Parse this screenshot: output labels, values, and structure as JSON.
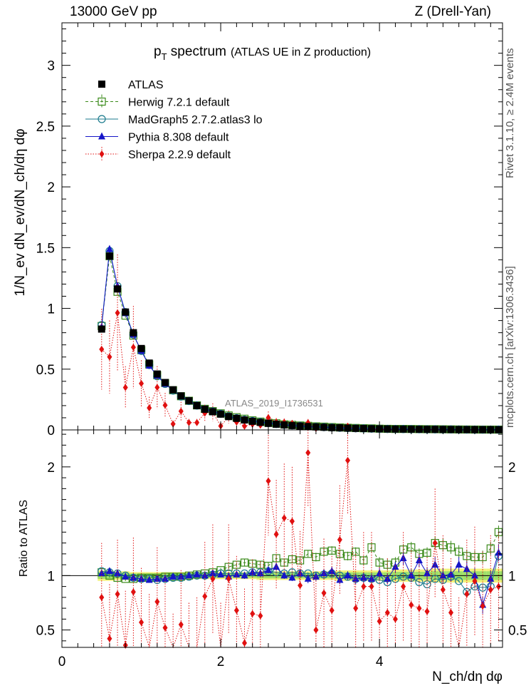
{
  "header": {
    "left": "13000 GeV pp",
    "right": "Z (Drell-Yan)"
  },
  "side_labels": {
    "rivet": "Rivet 3.1.10, ≥ 2.4M events",
    "mcplots": "mcplots.cern.ch [arXiv:1306.3436]"
  },
  "chart_data": {
    "type": "scatter",
    "title_main": "p",
    "title_sub": "T",
    "title_rest": " spectrum",
    "title_paren": "(ATLAS UE in Z production)",
    "analysis_label": "ATLAS_2019_I1736531",
    "ylabel_top": "1/N_ev dN_ev/dN_ch/dη dφ",
    "ylabel_bottom": "Ratio to ATLAS",
    "xlabel": "N_ch/dη dφ",
    "xlim": [
      0,
      5.55
    ],
    "ylim_top": [
      0,
      3.35
    ],
    "ylim_ratio": [
      0.34,
      2.34
    ],
    "y_ticks_top": [
      0,
      0.5,
      1,
      1.5,
      2,
      2.5,
      3
    ],
    "y_tick_labels_top": [
      "0",
      "0.5",
      "1",
      "1.5",
      "2",
      "2.5",
      "3"
    ],
    "y_ticks_ratio": [
      0.5,
      1,
      2
    ],
    "y_tick_labels_ratio": [
      "0.5",
      "1",
      "2"
    ],
    "x_ticks": [
      0,
      2,
      4
    ],
    "x_tick_labels": [
      "0",
      "2",
      "4"
    ],
    "x": [
      0.5,
      0.6,
      0.7,
      0.8,
      0.9,
      1.0,
      1.1,
      1.2,
      1.3,
      1.4,
      1.5,
      1.6,
      1.7,
      1.8,
      1.9,
      2.0,
      2.1,
      2.2,
      2.3,
      2.4,
      2.5,
      2.6,
      2.7,
      2.8,
      2.9,
      3.0,
      3.1,
      3.2,
      3.3,
      3.4,
      3.5,
      3.6,
      3.7,
      3.8,
      3.9,
      4.0,
      4.1,
      4.2,
      4.3,
      4.4,
      4.5,
      4.6,
      4.7,
      4.8,
      4.9,
      5.0,
      5.1,
      5.2,
      5.3,
      5.4,
      5.5
    ],
    "series": [
      {
        "name": "ATLAS",
        "color": "#000000",
        "marker": "square-filled",
        "values": [
          0.83,
          1.43,
          1.16,
          0.97,
          0.8,
          0.67,
          0.55,
          0.46,
          0.39,
          0.33,
          0.28,
          0.24,
          0.2,
          0.17,
          0.15,
          0.13,
          0.11,
          0.095,
          0.082,
          0.071,
          0.062,
          0.054,
          0.047,
          0.041,
          0.036,
          0.032,
          0.028,
          0.025,
          0.022,
          0.019,
          0.017,
          0.015,
          0.013,
          0.012,
          0.01,
          0.009,
          0.008,
          0.007,
          0.0065,
          0.006,
          0.0055,
          0.005,
          0.0045,
          0.004,
          0.0035,
          0.003,
          0.0028,
          0.0025,
          0.0022,
          0.002,
          0.0018
        ],
        "band": [
          0.03,
          0.03,
          0.025,
          0.025,
          0.02,
          0.02,
          0.02,
          0.02,
          0.02,
          0.02,
          0.02,
          0.02,
          0.02,
          0.02,
          0.02,
          0.02,
          0.02,
          0.02,
          0.02,
          0.02,
          0.025,
          0.025,
          0.025,
          0.025,
          0.025,
          0.025,
          0.025,
          0.025,
          0.025,
          0.025,
          0.03,
          0.03,
          0.03,
          0.03,
          0.03,
          0.03,
          0.03,
          0.035,
          0.035,
          0.035,
          0.035,
          0.035,
          0.04,
          0.04,
          0.04,
          0.04,
          0.04,
          0.04,
          0.04,
          0.04,
          0.04
        ]
      },
      {
        "name": "Herwig 7.2.1 default",
        "color": "#3a8a1a",
        "marker": "square-open",
        "line": "dashed",
        "ratio": [
          1.03,
          1.0,
          0.98,
          0.97,
          0.97,
          0.98,
          0.98,
          0.98,
          0.99,
          0.99,
          0.99,
          1.0,
          1.01,
          1.02,
          1.03,
          1.05,
          1.08,
          1.1,
          1.12,
          1.11,
          1.1,
          1.09,
          1.16,
          1.12,
          1.15,
          1.14,
          1.2,
          1.17,
          1.22,
          1.23,
          1.2,
          1.18,
          1.22,
          1.14,
          1.26,
          1.12,
          1.1,
          1.12,
          1.24,
          1.26,
          1.2,
          1.21,
          1.3,
          1.28,
          1.26,
          1.22,
          1.18,
          1.17,
          1.17,
          1.25,
          1.4
        ],
        "ratio_err": [
          0.02,
          0.02,
          0.02,
          0.02,
          0.02,
          0.02,
          0.02,
          0.02,
          0.02,
          0.02,
          0.02,
          0.02,
          0.02,
          0.02,
          0.02,
          0.02,
          0.02,
          0.02,
          0.03,
          0.03,
          0.03,
          0.03,
          0.03,
          0.03,
          0.03,
          0.03,
          0.03,
          0.04,
          0.04,
          0.04,
          0.04,
          0.04,
          0.04,
          0.04,
          0.05,
          0.05,
          0.05,
          0.05,
          0.05,
          0.05,
          0.05,
          0.05,
          0.06,
          0.06,
          0.06,
          0.06,
          0.06,
          0.06,
          0.06,
          0.06,
          0.06
        ]
      },
      {
        "name": "MadGraph5 2.7.2.atlas3 lo",
        "color": "#1a7a8c",
        "marker": "circle-open",
        "line": "solid",
        "ratio": [
          1.04,
          1.03,
          1.02,
          1.0,
          0.98,
          0.97,
          0.97,
          0.96,
          0.97,
          0.98,
          0.98,
          0.99,
          1.0,
          1.0,
          1.01,
          1.02,
          1.02,
          1.02,
          1.02,
          1.03,
          1.03,
          1.04,
          1.03,
          1.02,
          1.03,
          1.02,
          1.02,
          1.0,
          1.01,
          1.02,
          1.0,
          0.99,
          0.97,
          0.98,
          0.97,
          0.96,
          0.94,
          0.97,
          0.99,
          0.98,
          0.94,
          0.92,
          0.97,
          0.96,
          0.99,
          0.95,
          0.85,
          0.9,
          0.89,
          0.9,
          1.18
        ],
        "ratio_err": [
          0.01,
          0.01,
          0.01,
          0.01,
          0.01,
          0.01,
          0.01,
          0.01,
          0.01,
          0.01,
          0.01,
          0.01,
          0.01,
          0.01,
          0.01,
          0.01,
          0.01,
          0.01,
          0.01,
          0.01,
          0.01,
          0.01,
          0.01,
          0.01,
          0.01,
          0.01,
          0.01,
          0.01,
          0.01,
          0.01,
          0.01,
          0.01,
          0.01,
          0.01,
          0.01,
          0.01,
          0.01,
          0.01,
          0.01,
          0.01,
          0.01,
          0.01,
          0.01,
          0.01,
          0.01,
          0.01,
          0.01,
          0.02,
          0.02,
          0.02,
          0.02
        ]
      },
      {
        "name": "Pythia 8.308 default",
        "color": "#1515c8",
        "marker": "triangle-filled",
        "line": "solid",
        "ratio": [
          1.02,
          1.04,
          1.02,
          0.99,
          0.98,
          0.97,
          0.96,
          0.97,
          0.97,
          0.99,
          0.99,
          1.0,
          1.01,
          1.0,
          1.02,
          1.01,
          0.99,
          1.01,
          1.0,
          1.03,
          1.02,
          1.05,
          1.08,
          1.0,
          0.98,
          1.02,
          0.97,
          0.99,
          1.02,
          1.04,
          0.96,
          1.0,
          0.97,
          0.98,
          0.97,
          1.02,
          0.97,
          1.08,
          1.16,
          1.0,
          1.14,
          1.02,
          1.1,
          1.0,
          1.01,
          1.1,
          1.06,
          1.0,
          0.73,
          0.97,
          1.21
        ],
        "ratio_err": [
          0.02,
          0.02,
          0.02,
          0.02,
          0.02,
          0.02,
          0.02,
          0.02,
          0.02,
          0.02,
          0.02,
          0.02,
          0.02,
          0.02,
          0.02,
          0.02,
          0.03,
          0.03,
          0.03,
          0.03,
          0.03,
          0.03,
          0.03,
          0.03,
          0.03,
          0.03,
          0.04,
          0.04,
          0.04,
          0.04,
          0.04,
          0.04,
          0.05,
          0.05,
          0.05,
          0.05,
          0.05,
          0.05,
          0.06,
          0.06,
          0.06,
          0.06,
          0.07,
          0.07,
          0.07,
          0.07,
          0.07,
          0.07,
          0.08,
          0.08,
          0.08
        ]
      },
      {
        "name": "Sherpa 2.2.9 default",
        "color": "#e01010",
        "marker": "diamond-filled",
        "line": "dotted",
        "ratio": [
          0.8,
          0.42,
          0.83,
          0.36,
          0.85,
          0.57,
          0.33,
          0.76,
          0.52,
          0.15,
          0.55,
          0.25,
          0.3,
          0.81,
          0.97,
          0.25,
          0.97,
          0.68,
          0.38,
          0.65,
          0.63,
          1.87,
          1.38,
          1.53,
          1.5,
          0.91,
          2.13,
          0.5,
          0.84,
          0.68,
          1.33,
          2.06,
          0.7,
          0.9,
          0.9,
          0.58,
          0.66,
          0.6,
          0.9,
          0.73,
          0.7,
          0.67,
          1.3,
          0.87,
          0.66,
          0.3,
          0.83,
          0.95,
          0.72,
          0.87,
          0.9
        ],
        "ratio_err": [
          0.5,
          0.5,
          0.5,
          0.5,
          0.5,
          0.5,
          0.5,
          0.5,
          0.5,
          0.5,
          0.5,
          0.5,
          0.5,
          0.5,
          0.5,
          0.5,
          0.5,
          0.5,
          0.5,
          0.5,
          0.5,
          0.5,
          0.5,
          0.5,
          0.5,
          0.5,
          0.5,
          0.5,
          0.5,
          0.5,
          0.5,
          0.5,
          0.5,
          0.5,
          0.5,
          0.5,
          0.5,
          0.5,
          0.5,
          0.5,
          0.5,
          0.5,
          0.5,
          0.5,
          0.5,
          0.5,
          0.5,
          0.5,
          0.5,
          0.5,
          0.5
        ]
      }
    ],
    "legend_placement": "top-left"
  }
}
